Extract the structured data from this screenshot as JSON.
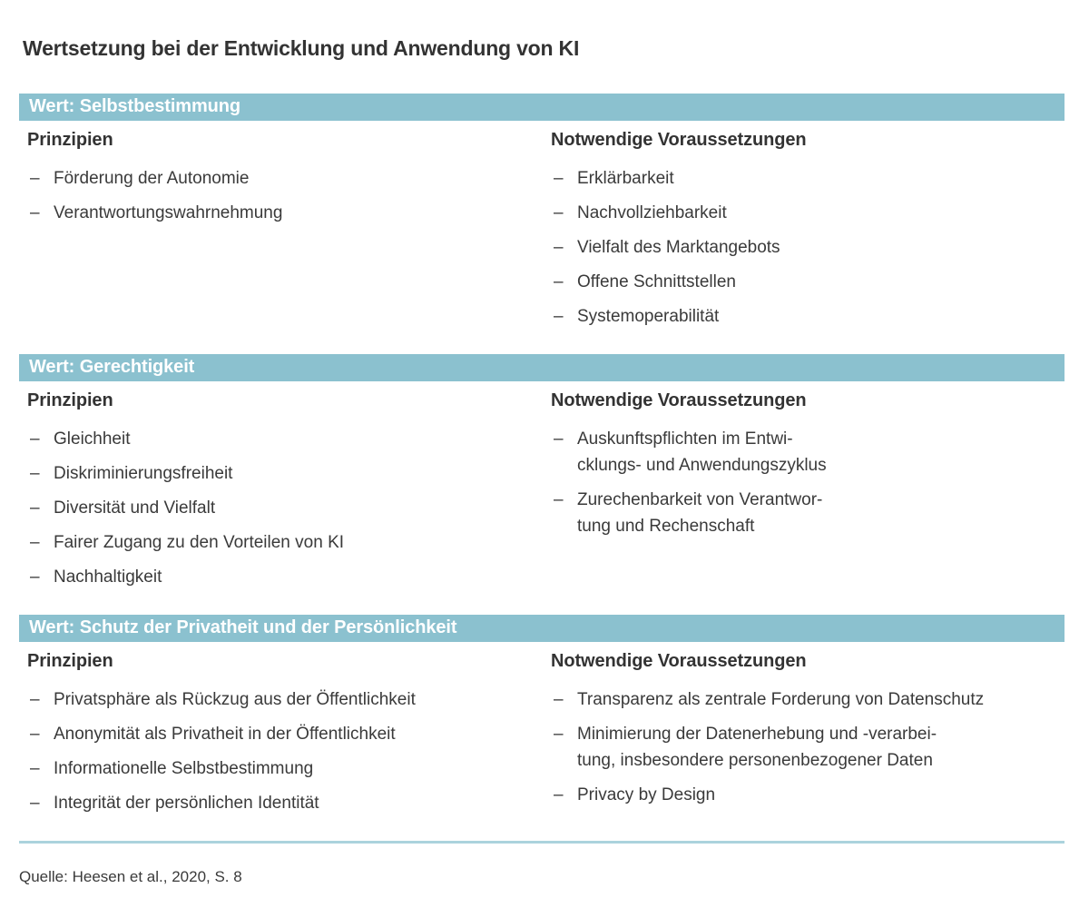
{
  "title": "Wertsetzung bei der Entwicklung und Anwendung von KI",
  "list_marker": "–",
  "colors": {
    "bar_background": "#8bc1cf",
    "bar_text": "#ffffff",
    "body_text": "#3a3a3a",
    "divider": "#abd3dd"
  },
  "column_headers": {
    "principles": "Prinzipien",
    "prerequisites": "Notwendige Voraussetzungen"
  },
  "sections": [
    {
      "value_label": "Wert: Selbstbestimmung",
      "principles": [
        "Förderung der Autonomie",
        "Verantwortungswahrnehmung"
      ],
      "prerequisites": [
        "Erklärbarkeit",
        "Nachvollziehbarkeit",
        "Vielfalt des Marktangebots",
        "Offene Schnittstellen",
        "Systemoperabilität"
      ]
    },
    {
      "value_label": "Wert: Gerechtigkeit",
      "principles": [
        "Gleichheit",
        "Diskriminierungsfreiheit",
        "Diversität und Vielfalt",
        "Fairer Zugang zu den Vorteilen von KI",
        "Nachhaltigkeit"
      ],
      "prerequisites": [
        "Auskunftspflichten im Entwi-\ncklungs- und Anwendungszyklus",
        "Zurechenbarkeit von Verantwor-\ntung und Rechenschaft"
      ]
    },
    {
      "value_label": "Wert: Schutz der Privatheit und der Persönlichkeit",
      "principles": [
        "Privatsphäre als Rückzug aus der Öffentlichkeit",
        "Anonymität als Privatheit in der Öffentlichkeit",
        "Informationelle Selbstbestimmung",
        "Integrität der persönlichen Identität"
      ],
      "prerequisites": [
        "Transparenz als zentrale Forderung von Datenschutz",
        "Minimierung der Datenerhebung und -verarbei-\ntung, insbesondere personenbezogener Daten",
        "Privacy by Design"
      ]
    }
  ],
  "source": "Quelle: Heesen et al., 2020, S. 8"
}
